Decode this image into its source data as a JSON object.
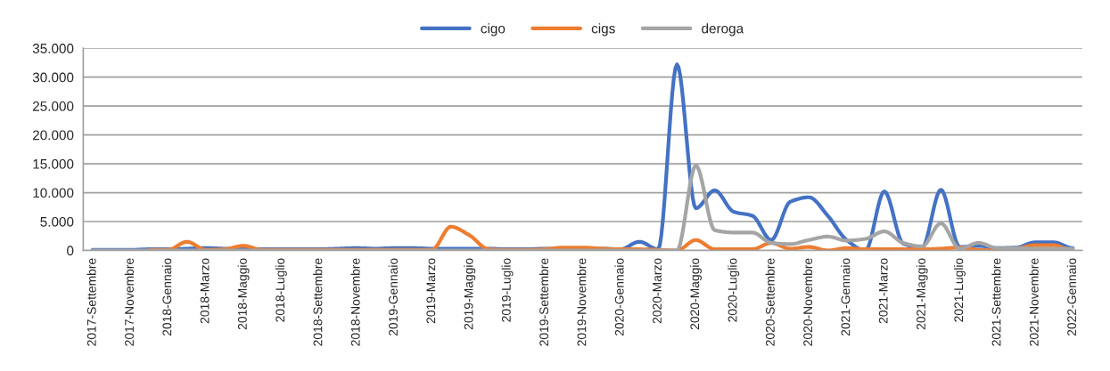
{
  "chart_data": {
    "type": "line",
    "categories": [
      "2017-Settembre",
      null,
      "2017-Novembre",
      null,
      "2018-Gennaio",
      null,
      "2018-Marzo",
      null,
      "2018-Maggio",
      null,
      "2018-Luglio",
      null,
      "2018-Settembre",
      null,
      "2018-Novembre",
      null,
      "2019-Gennaio",
      null,
      "2019-Marzo",
      null,
      "2019-Maggio",
      null,
      "2019-Luglio",
      null,
      "2019-Settembre",
      null,
      "2019-Novembre",
      null,
      "2020-Gennaio",
      null,
      "2020-Marzo",
      null,
      "2020-Maggio",
      null,
      "2020-Luglio",
      null,
      "2020-Settembre",
      null,
      "2020-Novembre",
      null,
      "2021-Gennaio",
      null,
      "2021-Marzo",
      null,
      "2021-Maggio",
      null,
      "2021-Luglio",
      null,
      "2021-Settembre",
      null,
      "2021-Novembre",
      null,
      "2022-Gennaio"
    ],
    "series": [
      {
        "name": "cigo",
        "color": "#4472c4",
        "values": [
          100,
          100,
          100,
          200,
          200,
          300,
          400,
          300,
          200,
          200,
          200,
          200,
          200,
          300,
          400,
          300,
          400,
          400,
          300,
          300,
          300,
          300,
          200,
          200,
          300,
          300,
          300,
          300,
          200,
          1500,
          200,
          32200,
          7300,
          10400,
          6700,
          6000,
          1800,
          8400,
          9200,
          6000,
          1800,
          0,
          10200,
          1200,
          500,
          10500,
          600,
          800,
          400,
          500,
          1400,
          1400,
          400
        ]
      },
      {
        "name": "cigs",
        "color": "#ed7d31",
        "values": [
          null,
          null,
          null,
          100,
          100,
          1500,
          100,
          200,
          800,
          100,
          100,
          100,
          100,
          100,
          100,
          100,
          100,
          100,
          100,
          4100,
          2600,
          200,
          100,
          100,
          200,
          500,
          500,
          300,
          200,
          200,
          100,
          0,
          1800,
          200,
          200,
          200,
          1300,
          300,
          600,
          0,
          400,
          200,
          200,
          200,
          200,
          300,
          500,
          100,
          0,
          300,
          900,
          900,
          0
        ]
      },
      {
        "name": "deroga",
        "color": "#a5a5a5",
        "values": [
          0,
          0,
          0,
          0,
          0,
          0,
          0,
          0,
          0,
          0,
          0,
          0,
          0,
          0,
          0,
          0,
          0,
          0,
          0,
          0,
          0,
          0,
          0,
          0,
          0,
          0,
          0,
          0,
          0,
          0,
          0,
          0,
          14700,
          3500,
          3100,
          3100,
          1300,
          1100,
          1800,
          2400,
          1700,
          2000,
          3300,
          1300,
          700,
          4700,
          300,
          1300,
          400,
          400,
          300,
          300,
          300
        ]
      }
    ],
    "ylim": [
      0,
      35000
    ],
    "yticks": [
      0,
      {
        "value": 5000,
        "label": "5.000"
      },
      {
        "value": 10000,
        "label": "10.000"
      },
      {
        "value": 15000,
        "label": "15.000"
      },
      {
        "value": 20000,
        "label": "20.000"
      },
      {
        "value": 25000,
        "label": "25.000"
      },
      {
        "value": 30000,
        "label": "30.000"
      },
      {
        "value": 35000,
        "label": "35.000"
      }
    ],
    "grid": "y",
    "legend": "top",
    "marker": "none",
    "line_style": "solid"
  }
}
